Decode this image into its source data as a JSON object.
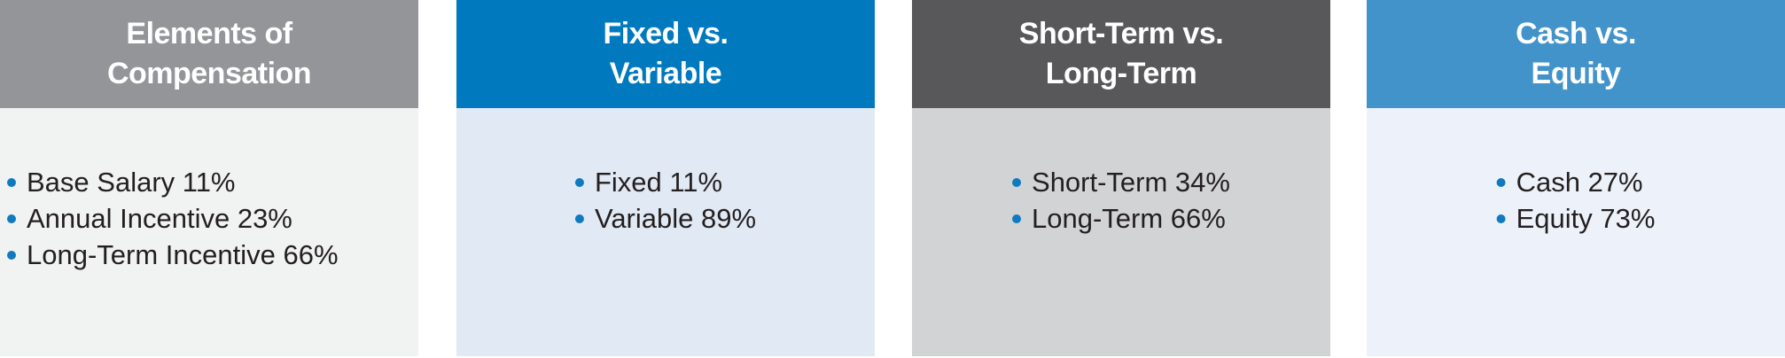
{
  "panels": [
    {
      "title_lines": [
        "Elements of",
        "Compensation"
      ],
      "items": [
        "Base Salary 11%",
        "Annual Incentive 23%",
        "Long-Term Incentive 66%"
      ],
      "header_color": "#939598",
      "body_color": "#f1f2f2"
    },
    {
      "title_lines": [
        "Fixed vs.",
        "Variable"
      ],
      "items": [
        "Fixed 11%",
        "Variable 89%"
      ],
      "header_color": "#0079be",
      "body_color": "#e1e9f4"
    },
    {
      "title_lines": [
        "Short-Term vs.",
        "Long-Term"
      ],
      "items": [
        "Short-Term 34%",
        "Long-Term 66%"
      ],
      "header_color": "#58585a",
      "body_color": "#d1d3d4"
    },
    {
      "title_lines": [
        "Cash vs.",
        "Equity"
      ],
      "items": [
        "Cash 27%",
        "Equity 73%"
      ],
      "header_color": "#4393cb",
      "body_color": "#edf2fa"
    }
  ],
  "bullet_color": "#0f7ac0"
}
